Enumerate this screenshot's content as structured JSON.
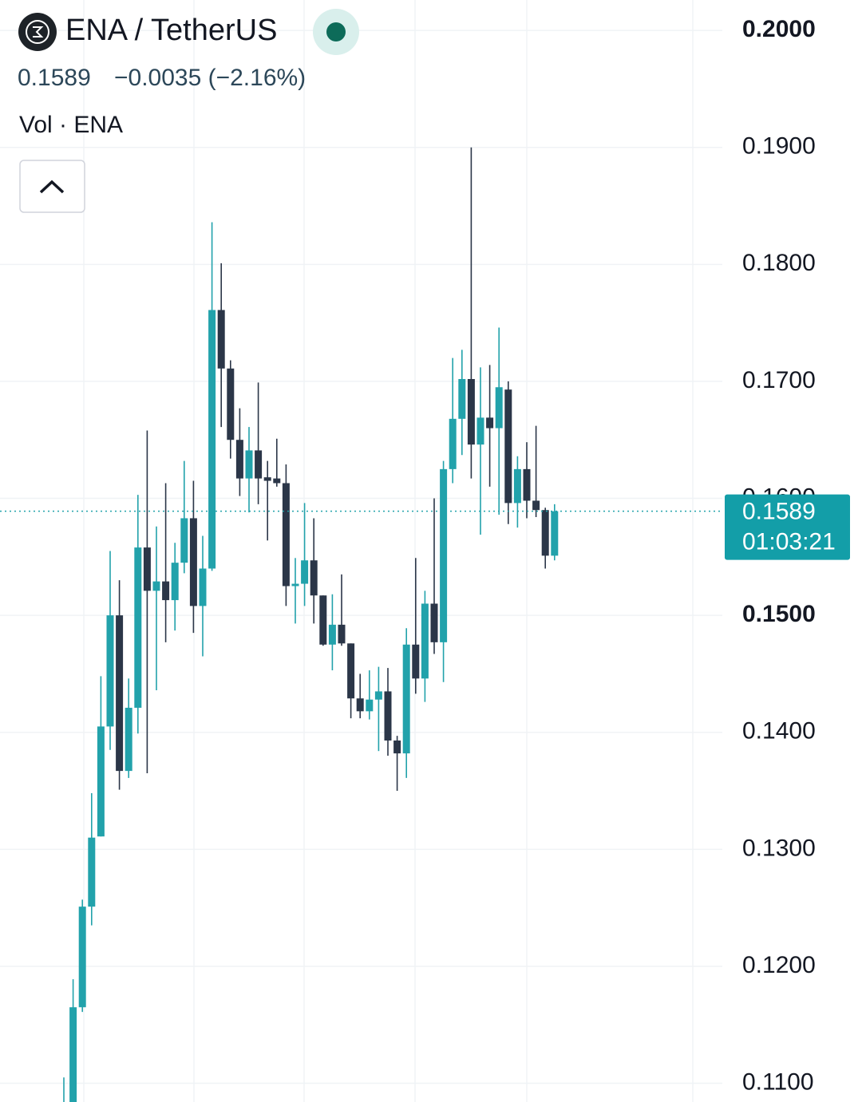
{
  "chart_data": {
    "type": "candlestick",
    "title": "ENA / TetherUS",
    "last_price": 0.1589,
    "change": "−0.0035 (−2.16%)",
    "volume_label": "Vol · ENA",
    "countdown": "01:03:21",
    "up_color": "#22a2ab",
    "down_color": "#2b3648",
    "ylim": [
      0.1084,
      0.2026
    ],
    "yticks": [
      {
        "value": 0.2,
        "label": "0.2000"
      },
      {
        "value": 0.19,
        "label": "0.1900"
      },
      {
        "value": 0.18,
        "label": "0.1800"
      },
      {
        "value": 0.17,
        "label": "0.1700"
      },
      {
        "value": 0.16,
        "label": "0.1600"
      },
      {
        "value": 0.15,
        "label": "0.1500"
      },
      {
        "value": 0.14,
        "label": "0.1400"
      },
      {
        "value": 0.13,
        "label": "0.1300"
      },
      {
        "value": 0.12,
        "label": "0.1200"
      },
      {
        "value": 0.11,
        "label": "0.1100"
      }
    ],
    "grid": true,
    "open": [
      0.105,
      0.107,
      0.1165,
      0.1251,
      0.1311,
      0.1405,
      0.15,
      0.1367,
      0.1421,
      0.1558,
      0.1521,
      0.1529,
      0.1513,
      0.1545,
      0.1583,
      0.1508,
      0.154,
      0.1761,
      0.1711,
      0.165,
      0.1617,
      0.1641,
      0.1618,
      0.1617,
      0.1613,
      0.1525,
      0.1527,
      0.1547,
      0.1517,
      0.1475,
      0.1492,
      0.1476,
      0.1429,
      0.1418,
      0.1428,
      0.1435,
      0.1393,
      0.1382,
      0.1475,
      0.1446,
      0.151,
      0.1477,
      0.1625,
      0.1668,
      0.1702,
      0.1646,
      0.1669,
      0.166,
      0.1693,
      0.1596,
      0.1625,
      0.1598,
      0.159,
      0.1551
    ],
    "high": [
      0.1105,
      0.1189,
      0.1257,
      0.1348,
      0.1448,
      0.1555,
      0.153,
      0.1446,
      0.1603,
      0.1658,
      0.1576,
      0.1613,
      0.1562,
      0.1632,
      0.1615,
      0.1568,
      0.1836,
      0.1801,
      0.1718,
      0.1677,
      0.1661,
      0.1699,
      0.1632,
      0.1651,
      0.1629,
      0.1549,
      0.1596,
      0.1583,
      0.1517,
      0.1518,
      0.1535,
      0.1476,
      0.145,
      0.1453,
      0.1456,
      0.1455,
      0.1397,
      0.1489,
      0.1549,
      0.1521,
      0.16,
      0.1632,
      0.172,
      0.1727,
      0.19,
      0.1712,
      0.1714,
      0.1746,
      0.17,
      0.1636,
      0.1648,
      0.1662,
      0.1592,
      0.1595
    ],
    "low": [
      0.104,
      0.106,
      0.1161,
      0.1235,
      0.1311,
      0.1385,
      0.1351,
      0.1361,
      0.1399,
      0.1365,
      0.1436,
      0.1477,
      0.1487,
      0.1536,
      0.1485,
      0.1465,
      0.1538,
      0.1661,
      0.1634,
      0.1602,
      0.1588,
      0.1595,
      0.1564,
      0.161,
      0.1508,
      0.1493,
      0.1508,
      0.1493,
      0.1474,
      0.1453,
      0.1474,
      0.1412,
      0.1412,
      0.1411,
      0.1384,
      0.138,
      0.135,
      0.1361,
      0.1433,
      0.1426,
      0.1467,
      0.1443,
      0.1613,
      0.1637,
      0.1617,
      0.1569,
      0.161,
      0.1586,
      0.1578,
      0.1575,
      0.1583,
      0.1584,
      0.154,
      0.1547
    ],
    "close": [
      0.108,
      0.1165,
      0.1251,
      0.131,
      0.1405,
      0.15,
      0.1367,
      0.1421,
      0.1558,
      0.1521,
      0.1529,
      0.1513,
      0.1545,
      0.1583,
      0.1508,
      0.154,
      0.1761,
      0.1711,
      0.165,
      0.1617,
      0.1641,
      0.1617,
      0.1615,
      0.1613,
      0.1525,
      0.1527,
      0.1547,
      0.1517,
      0.1475,
      0.1492,
      0.1476,
      0.1429,
      0.1418,
      0.1428,
      0.1435,
      0.1393,
      0.1382,
      0.1475,
      0.1446,
      0.151,
      0.1477,
      0.1625,
      0.1668,
      0.1702,
      0.1646,
      0.1669,
      0.166,
      0.1695,
      0.1596,
      0.1625,
      0.1598,
      0.159,
      0.1551,
      0.1589
    ]
  }
}
